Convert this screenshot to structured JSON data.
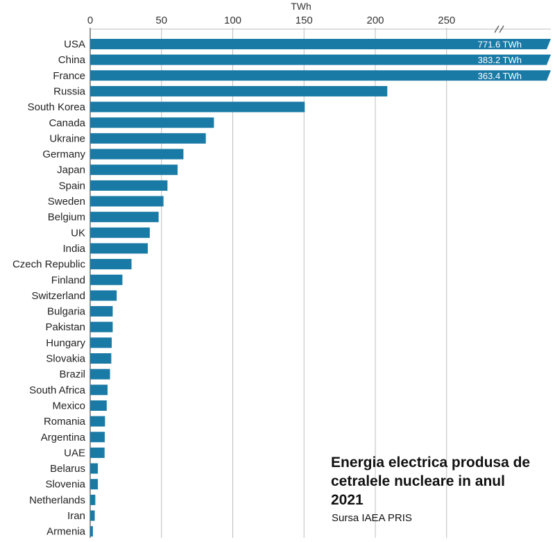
{
  "chart_data": {
    "type": "bar",
    "orientation": "horizontal",
    "xlabel": "TWh",
    "xlim": [
      0,
      300
    ],
    "xticks": [
      0,
      50,
      100,
      150,
      200,
      250
    ],
    "axis_break": true,
    "grid": true,
    "bar_color": "#1a7aa6",
    "categories": [
      "USA",
      "China",
      "France",
      "Russia",
      "South Korea",
      "Canada",
      "Ukraine",
      "Germany",
      "Japan",
      "Spain",
      "Sweden",
      "Belgium",
      "UK",
      "India",
      "Czech Republic",
      "Finland",
      "Switzerland",
      "Bulgaria",
      "Pakistan",
      "Hungary",
      "Slovakia",
      "Brazil",
      "South Africa",
      "Mexico",
      "Romania",
      "Argentina",
      "UAE",
      "Belarus",
      "Slovenia",
      "Netherlands",
      "Iran",
      "Armenia"
    ],
    "values": [
      771.6,
      383.2,
      363.4,
      208.4,
      150.5,
      86.8,
      81.1,
      65.4,
      61.3,
      54.2,
      51.4,
      48.0,
      41.8,
      40.4,
      29.0,
      22.6,
      18.6,
      15.8,
      15.8,
      15.1,
      14.8,
      13.9,
      12.2,
      11.6,
      10.4,
      10.2,
      10.1,
      5.4,
      5.4,
      3.6,
      3.2,
      1.9
    ],
    "value_labels": [
      "771.6 TWh",
      "383.2 TWh",
      "363.4 TWh",
      "",
      "",
      "",
      "",
      "",
      "",
      "",
      "",
      "",
      "",
      "",
      "",
      "",
      "",
      "",
      "",
      "",
      "",
      "",
      "",
      "",
      "",
      "",
      "",
      "",
      "",
      "",
      "",
      ""
    ]
  },
  "caption": {
    "title": "Energia electrica produsa de cetralele nucleare in anul 2021",
    "source": "Sursa IAEA PRIS"
  }
}
